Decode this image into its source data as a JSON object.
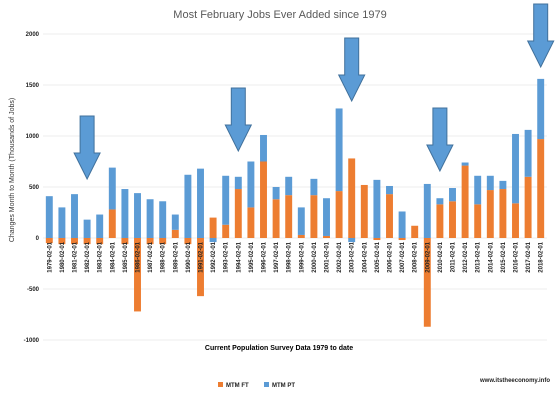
{
  "chart_data": {
    "type": "bar",
    "stacked": true,
    "title": "Most February Jobs Ever Added since 1979",
    "xlabel": "Current Population Survey Data 1979 to date",
    "ylabel": "Changes Month to Month  (Thousands of Jobs)",
    "ylim": [
      -1000,
      2000
    ],
    "yticks": [
      -1000,
      -500,
      0,
      500,
      1000,
      1500,
      2000
    ],
    "grid": true,
    "legend_position": "bottom-center",
    "categories": [
      "1979-02-01",
      "1980-02-01",
      "1981-02-01",
      "1982-02-01",
      "1983-02-01",
      "1984-02-01",
      "1985-02-01",
      "1986-02-01",
      "1987-02-01",
      "1988-02-01",
      "1989-02-01",
      "1990-02-01",
      "1991-02-01",
      "1992-02-01",
      "1993-02-01",
      "1994-02-01",
      "1995-02-01",
      "1996-02-01",
      "1997-02-01",
      "1998-02-01",
      "1999-02-01",
      "2000-02-01",
      "2001-02-01",
      "2002-02-01",
      "2003-02-01",
      "2004-02-01",
      "2005-02-01",
      "2006-02-01",
      "2007-02-01",
      "2008-02-01",
      "2009-02-01",
      "2010-02-01",
      "2011-02-01",
      "2012-02-01",
      "2013-02-01",
      "2014-02-01",
      "2015-02-01",
      "2016-02-01",
      "2017-02-01",
      "2018-02-01"
    ],
    "series": [
      {
        "name": "MTM FT",
        "color": "#ed7d31",
        "values": [
          -50,
          -60,
          -60,
          -60,
          -60,
          280,
          -60,
          -720,
          -60,
          -60,
          80,
          -60,
          -570,
          200,
          130,
          480,
          300,
          750,
          380,
          420,
          30,
          420,
          20,
          460,
          780,
          520,
          -20,
          430,
          -20,
          120,
          -870,
          330,
          360,
          710,
          330,
          470,
          480,
          340,
          600,
          970
        ]
      },
      {
        "name": "MTM PT",
        "color": "#5b9bd5",
        "values": [
          410,
          300,
          430,
          180,
          230,
          410,
          480,
          440,
          380,
          360,
          150,
          620,
          680,
          -40,
          480,
          120,
          450,
          260,
          120,
          180,
          270,
          160,
          370,
          810,
          -40,
          0,
          570,
          80,
          260,
          0,
          530,
          60,
          130,
          30,
          280,
          140,
          80,
          680,
          460,
          590
        ]
      }
    ],
    "annotations": {
      "arrows": [
        "1982-02-01",
        "1994-02-01",
        "2003-02-01",
        "2010-02-01",
        "2018-02-01"
      ],
      "arrow_color": "#5b9bd5"
    },
    "source": "www.itstheeconomy.info"
  }
}
